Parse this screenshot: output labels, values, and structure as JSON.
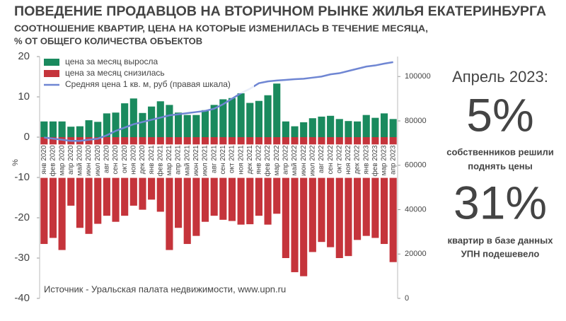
{
  "chart_data": {
    "type": "bar_line",
    "title": "ПОВЕДЕНИЕ ПРОДАВЦОВ НА ВТОРИЧНОМ РЫНКЕ ЖИЛЬЯ ЕКАТЕРИНБУРГА",
    "subtitle": [
      "СООТНОШЕНИЕ КВАРТИР, ЦЕНА НА КОТОРЫЕ ИЗМЕНИЛАСЬ В ТЕЧЕНИЕ МЕСЯЦА,",
      "% ОТ ОБЩЕГО КОЛИЧЕСТВА ОБЪЕКТОВ"
    ],
    "y_label": "%",
    "annotation": "Источник - Уральская палата недвижимости, www.upn.ru",
    "categories": [
      "янв 2020",
      "фев 2020",
      "мар 2020",
      "апр 2020",
      "май 2020",
      "июн 2020",
      "июл 2020",
      "авг 2020",
      "сен 2020",
      "окт 2020",
      "ноя 2020",
      "дек 2020",
      "янв 2021",
      "фев 2021",
      "мар 2021",
      "апр 2021",
      "май 2021",
      "июн 2021",
      "июл 2021",
      "авг 2021",
      "сен 2021",
      "окт 2021",
      "ноя 2021",
      "дек 2021",
      "янв 2022",
      "фев 2022",
      "мар 2022",
      "апр 2022",
      "май 2022",
      "июн 2022",
      "июл 2022",
      "авг 2022",
      "сен 2022",
      "окт 2022",
      "ноя 2022",
      "дек 2022",
      "янв 2023",
      "фев 2023",
      "мар 2023",
      "апр 2023"
    ],
    "series": [
      {
        "name": "цена за месяц выросла",
        "color": "#1a8a5e",
        "values": [
          3.9,
          3.9,
          3.9,
          2.6,
          2.7,
          4.2,
          3.8,
          5.9,
          6.1,
          8.4,
          9.6,
          6.0,
          7.6,
          8.9,
          8.0,
          6.1,
          5.5,
          5.5,
          6.7,
          8.0,
          9.4,
          9.7,
          11.0,
          8.5,
          9.0,
          10.4,
          13.3,
          3.9,
          2.7,
          3.7,
          4.7,
          5.1,
          5.3,
          4.5,
          4.0,
          3.9,
          5.5,
          4.8,
          5.9,
          4.5
        ]
      },
      {
        "name": "цена за месяц снизилась",
        "color": "#c5343b",
        "values": [
          -26.5,
          -25,
          -28,
          -17,
          -22.5,
          -24,
          -21.5,
          -19.5,
          -21,
          -19.5,
          -17,
          -18,
          -15.5,
          -18.5,
          -28,
          -22.5,
          -26.5,
          -24.5,
          -21,
          -19.5,
          -20.5,
          -20.8,
          -21.7,
          -21.6,
          -19.5,
          -21.7,
          -19,
          -30,
          -33.5,
          -34.5,
          -28.5,
          -26,
          -27.3,
          -30,
          -29.5,
          -25.5,
          -24.5,
          -25,
          -26.5,
          -31
        ]
      },
      {
        "name": "Средняя цена 1 кв. м, руб (правая шкала)",
        "color": "#6f86d3",
        "axis": "y2",
        "values": [
          72500,
          72000,
          71500,
          71000,
          71000,
          71500,
          72000,
          73500,
          75500,
          77000,
          78500,
          79500,
          80500,
          81500,
          82500,
          83000,
          83500,
          84000,
          84500,
          85500,
          87500,
          90000,
          92500,
          94500,
          97000,
          97800,
          98200,
          98500,
          98800,
          99000,
          99500,
          100000,
          101000,
          101500,
          102500,
          103500,
          104500,
          105000,
          105800,
          106500
        ]
      }
    ],
    "ylim": [
      -40,
      20
    ],
    "yticks": [
      20,
      10,
      0,
      -10,
      -20,
      -30,
      -40
    ],
    "y2lim": [
      0,
      109000
    ],
    "y2ticks": [
      0,
      20000,
      40000,
      60000,
      80000,
      100000
    ],
    "legend": "upper left"
  },
  "side_panel": {
    "heading": "Апрель 2023:",
    "stat1": "5%",
    "text1": [
      "собственников решили",
      "поднять цены"
    ],
    "stat2": "31%",
    "text2": [
      "квартир в базе данных",
      "УПН подешевело"
    ]
  }
}
